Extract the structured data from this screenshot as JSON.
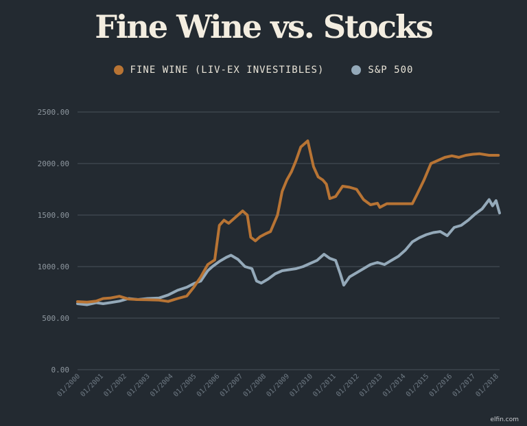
{
  "chart_data": {
    "type": "line",
    "title": "Fine Wine vs. Stocks",
    "xlabel": "",
    "ylabel": "",
    "ylim": [
      0,
      2500
    ],
    "yticks": [
      "0.00",
      "500.00",
      "1000.00",
      "1500.00",
      "2000.00",
      "2500.00"
    ],
    "xticks": [
      "01/2000",
      "01/2001",
      "01/2002",
      "01/2003",
      "01/2004",
      "01/2005",
      "01/2006",
      "01/2007",
      "01/2008",
      "01/2009",
      "01/2010",
      "01/2011",
      "01/2012",
      "01/2013",
      "01/2014",
      "01/2015",
      "01/2016",
      "01/2017",
      "01/2018"
    ],
    "xlim": [
      2000.0,
      2018.15
    ],
    "grid": true,
    "legend_position": "top-center",
    "series": [
      {
        "name": "FINE WINE (LIV-EX INVESTIBLES)",
        "color": "#b87434",
        "points": [
          [
            2000.0,
            660
          ],
          [
            2000.4,
            655
          ],
          [
            2000.8,
            665
          ],
          [
            2001.1,
            690
          ],
          [
            2001.4,
            695
          ],
          [
            2001.8,
            712
          ],
          [
            2002.2,
            685
          ],
          [
            2002.6,
            680
          ],
          [
            2003.0,
            678
          ],
          [
            2003.5,
            675
          ],
          [
            2003.9,
            662
          ],
          [
            2004.3,
            690
          ],
          [
            2004.7,
            715
          ],
          [
            2005.0,
            800
          ],
          [
            2005.3,
            900
          ],
          [
            2005.6,
            1020
          ],
          [
            2005.9,
            1065
          ],
          [
            2006.1,
            1400
          ],
          [
            2006.3,
            1450
          ],
          [
            2006.5,
            1420
          ],
          [
            2006.7,
            1460
          ],
          [
            2006.9,
            1500
          ],
          [
            2007.1,
            1540
          ],
          [
            2007.3,
            1500
          ],
          [
            2007.45,
            1285
          ],
          [
            2007.65,
            1250
          ],
          [
            2007.85,
            1290
          ],
          [
            2008.1,
            1320
          ],
          [
            2008.3,
            1340
          ],
          [
            2008.6,
            1500
          ],
          [
            2008.8,
            1730
          ],
          [
            2009.0,
            1840
          ],
          [
            2009.2,
            1920
          ],
          [
            2009.4,
            2030
          ],
          [
            2009.6,
            2160
          ],
          [
            2009.9,
            2220
          ],
          [
            2010.15,
            1970
          ],
          [
            2010.35,
            1870
          ],
          [
            2010.55,
            1840
          ],
          [
            2010.7,
            1800
          ],
          [
            2010.85,
            1660
          ],
          [
            2011.1,
            1680
          ],
          [
            2011.4,
            1780
          ],
          [
            2011.7,
            1770
          ],
          [
            2012.0,
            1750
          ],
          [
            2012.3,
            1650
          ],
          [
            2012.6,
            1600
          ],
          [
            2012.9,
            1615
          ],
          [
            2013.0,
            1575
          ],
          [
            2013.3,
            1610
          ],
          [
            2013.6,
            1610
          ],
          [
            2014.0,
            1610
          ],
          [
            2014.4,
            1610
          ],
          [
            2014.6,
            1700
          ],
          [
            2014.9,
            1840
          ],
          [
            2015.2,
            2000
          ],
          [
            2015.5,
            2030
          ],
          [
            2015.8,
            2060
          ],
          [
            2016.1,
            2075
          ],
          [
            2016.4,
            2060
          ],
          [
            2016.7,
            2080
          ],
          [
            2017.0,
            2090
          ],
          [
            2017.3,
            2095
          ],
          [
            2017.7,
            2080
          ],
          [
            2018.1,
            2080
          ]
        ]
      },
      {
        "name": "S&P 500",
        "color": "#94a9b9",
        "points": [
          [
            2000.0,
            640
          ],
          [
            2000.4,
            630
          ],
          [
            2000.8,
            650
          ],
          [
            2001.1,
            640
          ],
          [
            2001.4,
            650
          ],
          [
            2001.8,
            665
          ],
          [
            2002.2,
            690
          ],
          [
            2002.6,
            680
          ],
          [
            2003.0,
            690
          ],
          [
            2003.5,
            695
          ],
          [
            2003.9,
            725
          ],
          [
            2004.3,
            770
          ],
          [
            2004.7,
            800
          ],
          [
            2005.0,
            835
          ],
          [
            2005.3,
            860
          ],
          [
            2005.6,
            960
          ],
          [
            2005.8,
            1000
          ],
          [
            2006.1,
            1050
          ],
          [
            2006.4,
            1090
          ],
          [
            2006.6,
            1110
          ],
          [
            2006.9,
            1070
          ],
          [
            2007.2,
            1000
          ],
          [
            2007.5,
            980
          ],
          [
            2007.7,
            860
          ],
          [
            2007.9,
            840
          ],
          [
            2008.2,
            880
          ],
          [
            2008.5,
            930
          ],
          [
            2008.8,
            960
          ],
          [
            2009.1,
            970
          ],
          [
            2009.4,
            980
          ],
          [
            2009.7,
            1000
          ],
          [
            2010.0,
            1030
          ],
          [
            2010.3,
            1060
          ],
          [
            2010.6,
            1120
          ],
          [
            2010.85,
            1080
          ],
          [
            2011.1,
            1060
          ],
          [
            2011.3,
            930
          ],
          [
            2011.45,
            820
          ],
          [
            2011.7,
            900
          ],
          [
            2012.0,
            940
          ],
          [
            2012.3,
            980
          ],
          [
            2012.6,
            1020
          ],
          [
            2012.9,
            1040
          ],
          [
            2013.2,
            1020
          ],
          [
            2013.5,
            1060
          ],
          [
            2013.8,
            1100
          ],
          [
            2014.1,
            1160
          ],
          [
            2014.4,
            1240
          ],
          [
            2014.7,
            1280
          ],
          [
            2015.0,
            1310
          ],
          [
            2015.3,
            1330
          ],
          [
            2015.6,
            1340
          ],
          [
            2015.9,
            1300
          ],
          [
            2016.2,
            1380
          ],
          [
            2016.5,
            1400
          ],
          [
            2016.8,
            1450
          ],
          [
            2017.1,
            1510
          ],
          [
            2017.4,
            1560
          ],
          [
            2017.7,
            1650
          ],
          [
            2017.85,
            1590
          ],
          [
            2018.0,
            1640
          ],
          [
            2018.15,
            1520
          ]
        ]
      }
    ]
  },
  "credit": "elfin.com"
}
